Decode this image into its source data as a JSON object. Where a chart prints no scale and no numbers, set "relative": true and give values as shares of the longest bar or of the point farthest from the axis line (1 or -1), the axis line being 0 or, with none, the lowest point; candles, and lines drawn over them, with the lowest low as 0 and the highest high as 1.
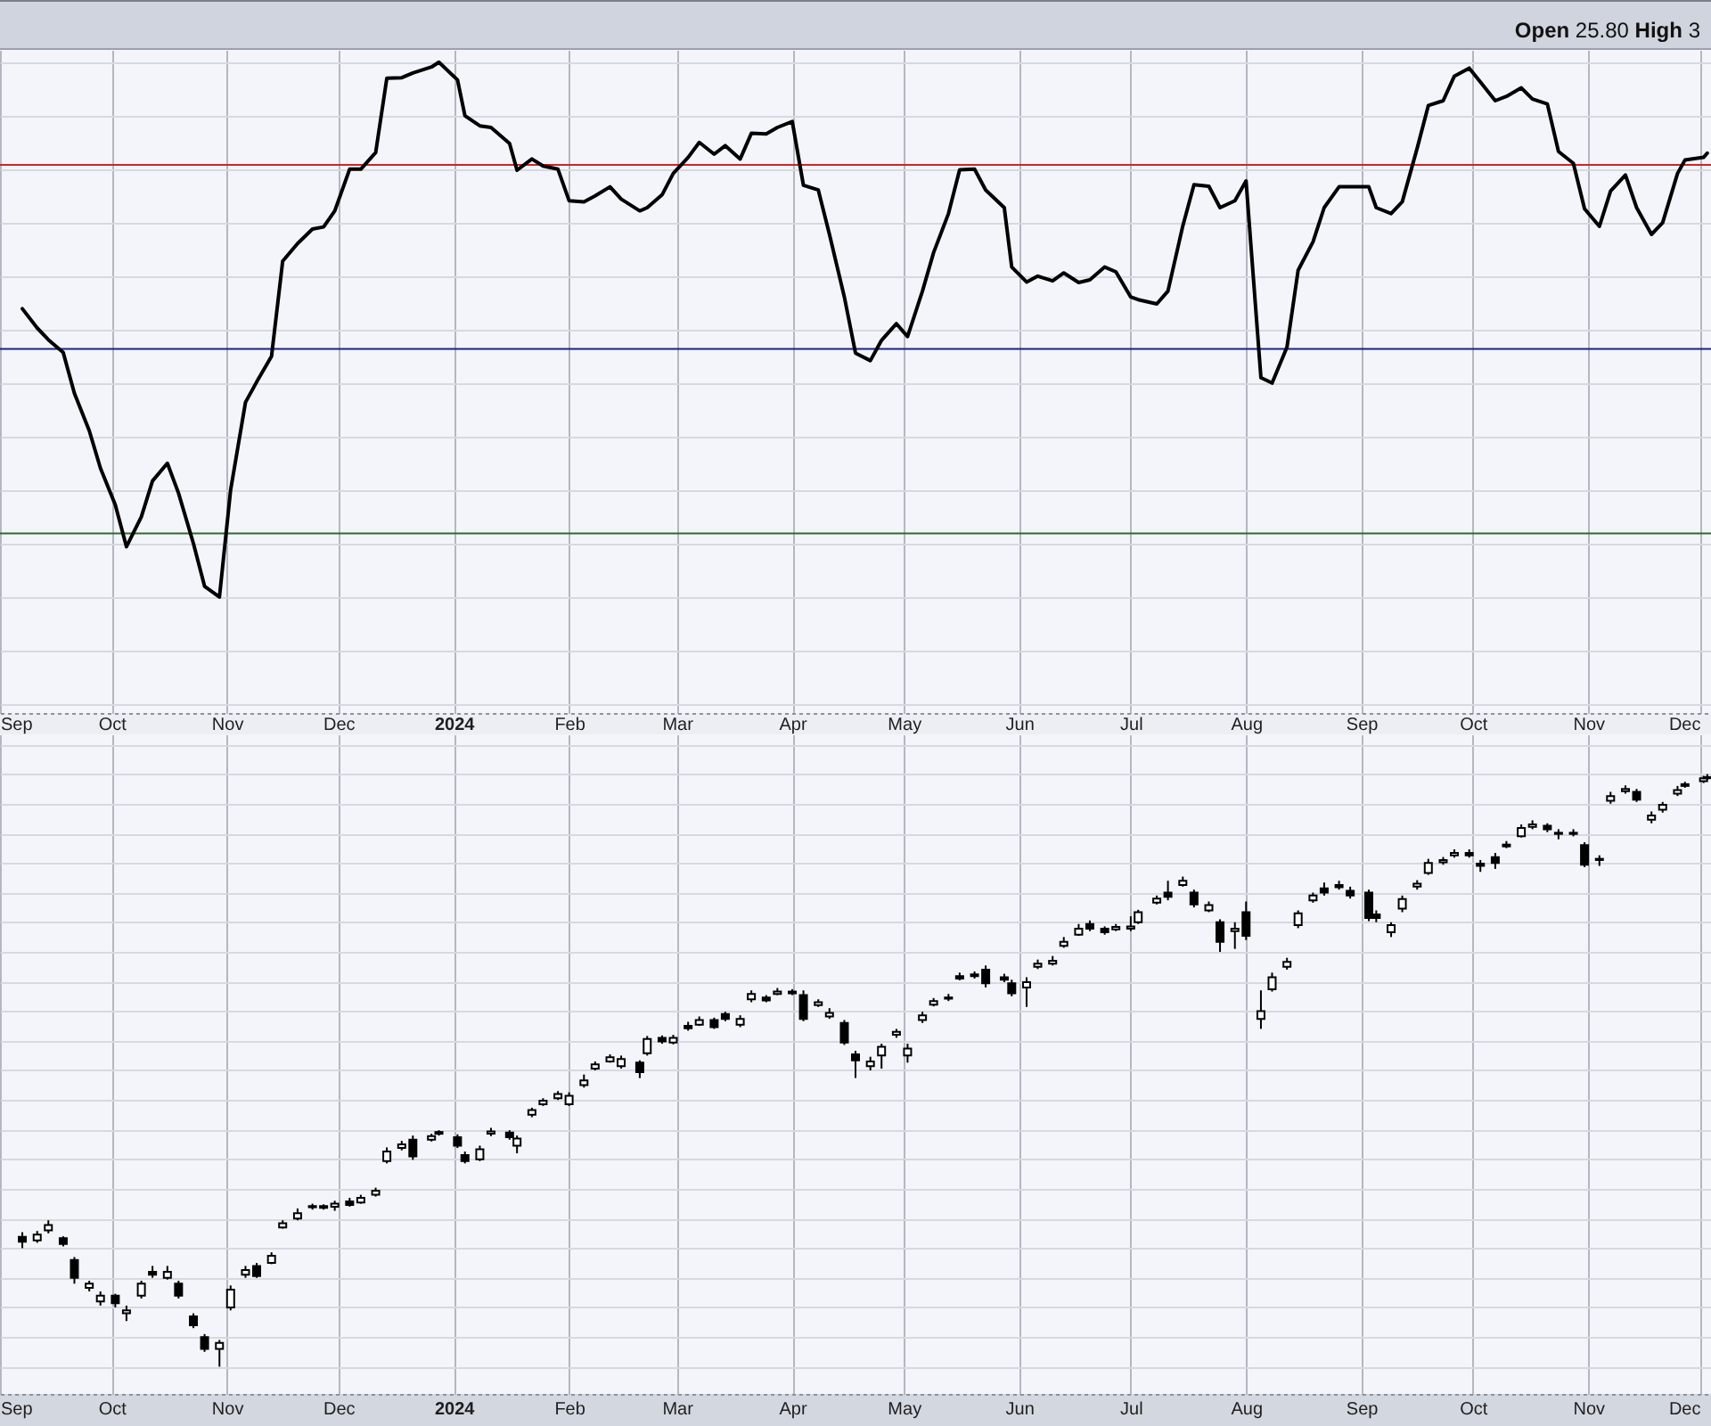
{
  "chart_data": [
    {
      "type": "line",
      "annotations": [
        "Open 25.80 High 3"
      ],
      "relative": true,
      "color": "#000000",
      "grid": true,
      "tick_labels": "x",
      "xlim": [
        "2023-09-01",
        "2024-12-04"
      ],
      "xticks": [
        {
          "value": "2023-09-01",
          "label": "Sep"
        },
        {
          "value": "2023-10-01",
          "label": "Oct"
        },
        {
          "value": "2023-11-01",
          "label": "Nov"
        },
        {
          "value": "2023-12-01",
          "label": "Dec"
        },
        {
          "value": "2024-01-01",
          "label": "2024"
        },
        {
          "value": "2024-02-01",
          "label": "Feb"
        },
        {
          "value": "2024-03-01",
          "label": "Mar"
        },
        {
          "value": "2024-04-01",
          "label": "Apr"
        },
        {
          "value": "2024-05-01",
          "label": "May"
        },
        {
          "value": "2024-06-01",
          "label": "Jun"
        },
        {
          "value": "2024-07-01",
          "label": "Jul"
        },
        {
          "value": "2024-08-01",
          "label": "Aug"
        },
        {
          "value": "2024-09-01",
          "label": "Sep"
        },
        {
          "value": "2024-10-01",
          "label": "Oct"
        },
        {
          "value": "2024-11-01",
          "label": "Nov"
        },
        {
          "value": "2024-12-01",
          "label": "Dec"
        }
      ],
      "ref_lines": [
        {
          "axis": "y",
          "value": 0.808,
          "color": "#c62828"
        },
        {
          "axis": "y",
          "value": 0.464,
          "color": "#1a237e"
        },
        {
          "axis": "y",
          "value": 0.119,
          "color": "#2e6b2e"
        }
      ],
      "x": [
        "2023-09-07",
        "2023-09-11",
        "2023-09-14",
        "2023-09-18",
        "2023-09-21",
        "2023-09-25",
        "2023-09-28",
        "2023-10-02",
        "2023-10-05",
        "2023-10-09",
        "2023-10-12",
        "2023-10-16",
        "2023-10-19",
        "2023-10-23",
        "2023-10-26",
        "2023-10-30",
        "2023-11-02",
        "2023-11-06",
        "2023-11-09",
        "2023-11-13",
        "2023-11-16",
        "2023-11-20",
        "2023-11-24",
        "2023-11-27",
        "2023-11-30",
        "2023-12-04",
        "2023-12-07",
        "2023-12-11",
        "2023-12-14",
        "2023-12-18",
        "2023-12-21",
        "2023-12-26",
        "2023-12-28",
        "2024-01-02",
        "2024-01-04",
        "2024-01-08",
        "2024-01-11",
        "2024-01-16",
        "2024-01-18",
        "2024-01-22",
        "2024-01-25",
        "2024-01-29",
        "2024-02-01",
        "2024-02-05",
        "2024-02-08",
        "2024-02-12",
        "2024-02-15",
        "2024-02-20",
        "2024-02-22",
        "2024-02-26",
        "2024-02-29",
        "2024-03-04",
        "2024-03-07",
        "2024-03-11",
        "2024-03-14",
        "2024-03-18",
        "2024-03-21",
        "2024-03-25",
        "2024-03-28",
        "2024-04-01",
        "2024-04-04",
        "2024-04-08",
        "2024-04-11",
        "2024-04-15",
        "2024-04-18",
        "2024-04-22",
        "2024-04-25",
        "2024-04-29",
        "2024-05-02",
        "2024-05-06",
        "2024-05-09",
        "2024-05-13",
        "2024-05-16",
        "2024-05-20",
        "2024-05-23",
        "2024-05-28",
        "2024-05-30",
        "2024-06-03",
        "2024-06-06",
        "2024-06-10",
        "2024-06-13",
        "2024-06-17",
        "2024-06-20",
        "2024-06-24",
        "2024-06-27",
        "2024-07-01",
        "2024-07-03",
        "2024-07-08",
        "2024-07-11",
        "2024-07-15",
        "2024-07-18",
        "2024-07-22",
        "2024-07-25",
        "2024-07-29",
        "2024-08-01",
        "2024-08-05",
        "2024-08-08",
        "2024-08-12",
        "2024-08-15",
        "2024-08-19",
        "2024-08-22",
        "2024-08-26",
        "2024-08-29",
        "2024-09-03",
        "2024-09-05",
        "2024-09-09",
        "2024-09-12",
        "2024-09-16",
        "2024-09-19",
        "2024-09-23",
        "2024-09-26",
        "2024-09-30",
        "2024-10-03",
        "2024-10-07",
        "2024-10-10",
        "2024-10-14",
        "2024-10-17",
        "2024-10-21",
        "2024-10-24",
        "2024-10-28",
        "2024-10-31",
        "2024-11-04",
        "2024-11-07",
        "2024-11-11",
        "2024-11-14",
        "2024-11-18",
        "2024-11-21",
        "2024-11-25",
        "2024-11-27",
        "2024-12-02",
        "2024-12-03"
      ],
      "values": [
        0.539,
        0.503,
        0.481,
        0.457,
        0.381,
        0.311,
        0.241,
        0.172,
        0.094,
        0.15,
        0.217,
        0.25,
        0.194,
        0.1,
        0.02,
        0,
        0.2,
        0.364,
        0.402,
        0.45,
        0.628,
        0.661,
        0.688,
        0.692,
        0.722,
        0.8,
        0.8,
        0.831,
        0.97,
        0.971,
        0.98,
        0.991,
        1,
        0.967,
        0.9,
        0.881,
        0.878,
        0.848,
        0.798,
        0.819,
        0.806,
        0.8,
        0.741,
        0.739,
        0.75,
        0.767,
        0.744,
        0.722,
        0.728,
        0.752,
        0.792,
        0.822,
        0.85,
        0.828,
        0.844,
        0.819,
        0.867,
        0.866,
        0.878,
        0.889,
        0.77,
        0.761,
        0.678,
        0.561,
        0.456,
        0.442,
        0.48,
        0.511,
        0.487,
        0.572,
        0.644,
        0.717,
        0.799,
        0.8,
        0.761,
        0.728,
        0.617,
        0.589,
        0.6,
        0.591,
        0.606,
        0.588,
        0.593,
        0.617,
        0.608,
        0.561,
        0.556,
        0.548,
        0.572,
        0.694,
        0.771,
        0.768,
        0.728,
        0.741,
        0.778,
        0.41,
        0.4,
        0.467,
        0.611,
        0.664,
        0.728,
        0.767,
        0.767,
        0.767,
        0.728,
        0.717,
        0.739,
        0.839,
        0.919,
        0.928,
        0.974,
        0.989,
        0.963,
        0.928,
        0.936,
        0.952,
        0.931,
        0.922,
        0.833,
        0.811,
        0.726,
        0.693,
        0.759,
        0.789,
        0.728,
        0.678,
        0.7,
        0.792,
        0.817,
        0.822,
        0.83
      ]
    },
    {
      "type": "candlestick",
      "relative": true,
      "color": "#000000",
      "grid": true,
      "tick_labels": "x",
      "xlim": [
        "2023-09-01",
        "2024-12-04"
      ],
      "xticks": [
        {
          "value": "2023-09-01",
          "label": "Sep"
        },
        {
          "value": "2023-10-01",
          "label": "Oct"
        },
        {
          "value": "2023-11-01",
          "label": "Nov"
        },
        {
          "value": "2023-12-01",
          "label": "Dec"
        },
        {
          "value": "2024-01-01",
          "label": "2024"
        },
        {
          "value": "2024-02-01",
          "label": "Feb"
        },
        {
          "value": "2024-03-01",
          "label": "Mar"
        },
        {
          "value": "2024-04-01",
          "label": "Apr"
        },
        {
          "value": "2024-05-01",
          "label": "May"
        },
        {
          "value": "2024-06-01",
          "label": "Jun"
        },
        {
          "value": "2024-07-01",
          "label": "Jul"
        },
        {
          "value": "2024-08-01",
          "label": "Aug"
        },
        {
          "value": "2024-09-01",
          "label": "Sep"
        },
        {
          "value": "2024-10-01",
          "label": "Oct"
        },
        {
          "value": "2024-11-01",
          "label": "Nov"
        },
        {
          "value": "2024-12-01",
          "label": "Dec"
        }
      ],
      "x": [
        "2023-09-07",
        "2023-09-11",
        "2023-09-14",
        "2023-09-18",
        "2023-09-21",
        "2023-09-25",
        "2023-09-28",
        "2023-10-02",
        "2023-10-05",
        "2023-10-09",
        "2023-10-12",
        "2023-10-16",
        "2023-10-19",
        "2023-10-23",
        "2023-10-26",
        "2023-10-30",
        "2023-11-02",
        "2023-11-06",
        "2023-11-09",
        "2023-11-13",
        "2023-11-16",
        "2023-11-20",
        "2023-11-24",
        "2023-11-27",
        "2023-11-30",
        "2023-12-04",
        "2023-12-07",
        "2023-12-11",
        "2023-12-14",
        "2023-12-18",
        "2023-12-21",
        "2023-12-26",
        "2023-12-28",
        "2024-01-02",
        "2024-01-04",
        "2024-01-08",
        "2024-01-11",
        "2024-01-16",
        "2024-01-18",
        "2024-01-22",
        "2024-01-25",
        "2024-01-29",
        "2024-02-01",
        "2024-02-05",
        "2024-02-08",
        "2024-02-12",
        "2024-02-15",
        "2024-02-20",
        "2024-02-22",
        "2024-02-26",
        "2024-02-29",
        "2024-03-04",
        "2024-03-07",
        "2024-03-11",
        "2024-03-14",
        "2024-03-18",
        "2024-03-21",
        "2024-03-25",
        "2024-03-28",
        "2024-04-01",
        "2024-04-04",
        "2024-04-08",
        "2024-04-11",
        "2024-04-15",
        "2024-04-18",
        "2024-04-22",
        "2024-04-25",
        "2024-04-29",
        "2024-05-02",
        "2024-05-06",
        "2024-05-09",
        "2024-05-13",
        "2024-05-16",
        "2024-05-20",
        "2024-05-23",
        "2024-05-28",
        "2024-05-30",
        "2024-06-03",
        "2024-06-06",
        "2024-06-10",
        "2024-06-13",
        "2024-06-17",
        "2024-06-20",
        "2024-06-24",
        "2024-06-27",
        "2024-07-01",
        "2024-07-03",
        "2024-07-08",
        "2024-07-11",
        "2024-07-15",
        "2024-07-18",
        "2024-07-22",
        "2024-07-25",
        "2024-07-29",
        "2024-08-01",
        "2024-08-05",
        "2024-08-08",
        "2024-08-12",
        "2024-08-15",
        "2024-08-19",
        "2024-08-22",
        "2024-08-26",
        "2024-08-29",
        "2024-09-03",
        "2024-09-05",
        "2024-09-09",
        "2024-09-12",
        "2024-09-16",
        "2024-09-19",
        "2024-09-23",
        "2024-09-26",
        "2024-09-30",
        "2024-10-03",
        "2024-10-07",
        "2024-10-10",
        "2024-10-14",
        "2024-10-17",
        "2024-10-21",
        "2024-10-24",
        "2024-10-28",
        "2024-10-31",
        "2024-11-04",
        "2024-11-07",
        "2024-11-11",
        "2024-11-14",
        "2024-11-18",
        "2024-11-21",
        "2024-11-25",
        "2024-11-27",
        "2024-12-02",
        "2024-12-03"
      ],
      "ohlc": [
        [
          0.219,
          0.227,
          0.2,
          0.211
        ],
        [
          0.213,
          0.229,
          0.209,
          0.223
        ],
        [
          0.23,
          0.247,
          0.225,
          0.239
        ],
        [
          0.217,
          0.22,
          0.203,
          0.207
        ],
        [
          0.18,
          0.185,
          0.14,
          0.15
        ],
        [
          0.133,
          0.145,
          0.127,
          0.14
        ],
        [
          0.11,
          0.127,
          0.103,
          0.12
        ],
        [
          0.12,
          0.123,
          0.1,
          0.107
        ],
        [
          0.09,
          0.103,
          0.077,
          0.095
        ],
        [
          0.12,
          0.145,
          0.115,
          0.14
        ],
        [
          0.16,
          0.17,
          0.15,
          0.155
        ],
        [
          0.15,
          0.17,
          0.147,
          0.16
        ],
        [
          0.14,
          0.145,
          0.115,
          0.12
        ],
        [
          0.085,
          0.09,
          0.065,
          0.07
        ],
        [
          0.05,
          0.055,
          0.025,
          0.03
        ],
        [
          0.03,
          0.045,
          0,
          0.04
        ],
        [
          0.1,
          0.137,
          0.095,
          0.13
        ],
        [
          0.155,
          0.17,
          0.15,
          0.163
        ],
        [
          0.17,
          0.175,
          0.15,
          0.153
        ],
        [
          0.175,
          0.193,
          0.173,
          0.187
        ],
        [
          0.235,
          0.247,
          0.233,
          0.242
        ],
        [
          0.25,
          0.267,
          0.247,
          0.259
        ],
        [
          0.269,
          0.275,
          0.265,
          0.271
        ],
        [
          0.271,
          0.274,
          0.265,
          0.268
        ],
        [
          0.27,
          0.28,
          0.263,
          0.275
        ],
        [
          0.279,
          0.285,
          0.27,
          0.273
        ],
        [
          0.277,
          0.29,
          0.275,
          0.285
        ],
        [
          0.29,
          0.302,
          0.287,
          0.297
        ],
        [
          0.347,
          0.37,
          0.343,
          0.363
        ],
        [
          0.369,
          0.381,
          0.365,
          0.375
        ],
        [
          0.383,
          0.39,
          0.349,
          0.355
        ],
        [
          0.383,
          0.393,
          0.38,
          0.389
        ],
        [
          0.393,
          0.399,
          0.39,
          0.396
        ],
        [
          0.387,
          0.392,
          0.369,
          0.373
        ],
        [
          0.357,
          0.363,
          0.343,
          0.347
        ],
        [
          0.35,
          0.373,
          0.347,
          0.367
        ],
        [
          0.393,
          0.403,
          0.389,
          0.397
        ],
        [
          0.395,
          0.399,
          0.383,
          0.387
        ],
        [
          0.373,
          0.39,
          0.36,
          0.385
        ],
        [
          0.425,
          0.437,
          0.421,
          0.433
        ],
        [
          0.443,
          0.453,
          0.44,
          0.449
        ],
        [
          0.453,
          0.465,
          0.45,
          0.46
        ],
        [
          0.443,
          0.463,
          0.44,
          0.457
        ],
        [
          0.475,
          0.493,
          0.471,
          0.483
        ],
        [
          0.503,
          0.515,
          0.5,
          0.51
        ],
        [
          0.515,
          0.527,
          0.513,
          0.522
        ],
        [
          0.507,
          0.525,
          0.503,
          0.519
        ],
        [
          0.513,
          0.517,
          0.487,
          0.497
        ],
        [
          0.529,
          0.558,
          0.525,
          0.553
        ],
        [
          0.555,
          0.559,
          0.545,
          0.549
        ],
        [
          0.547,
          0.56,
          0.544,
          0.555
        ],
        [
          0.575,
          0.582,
          0.567,
          0.571
        ],
        [
          0.577,
          0.591,
          0.575,
          0.585
        ],
        [
          0.585,
          0.589,
          0.57,
          0.573
        ],
        [
          0.595,
          0.599,
          0.583,
          0.587
        ],
        [
          0.577,
          0.593,
          0.573,
          0.587
        ],
        [
          0.62,
          0.635,
          0.615,
          0.629
        ],
        [
          0.623,
          0.627,
          0.615,
          0.618
        ],
        [
          0.629,
          0.639,
          0.627,
          0.633
        ],
        [
          0.633,
          0.637,
          0.627,
          0.63
        ],
        [
          0.627,
          0.635,
          0.583,
          0.587
        ],
        [
          0.61,
          0.62,
          0.607,
          0.615
        ],
        [
          0.591,
          0.605,
          0.587,
          0.597
        ],
        [
          0.58,
          0.585,
          0.543,
          0.547
        ],
        [
          0.527,
          0.533,
          0.487,
          0.517
        ],
        [
          0.507,
          0.523,
          0.5,
          0.515
        ],
        [
          0.525,
          0.545,
          0.503,
          0.54
        ],
        [
          0.56,
          0.57,
          0.555,
          0.565
        ],
        [
          0.525,
          0.545,
          0.513,
          0.537
        ],
        [
          0.585,
          0.599,
          0.58,
          0.593
        ],
        [
          0.611,
          0.622,
          0.608,
          0.617
        ],
        [
          0.623,
          0.629,
          0.617,
          0.621
        ],
        [
          0.659,
          0.665,
          0.652,
          0.655
        ],
        [
          0.659,
          0.667,
          0.655,
          0.662
        ],
        [
          0.67,
          0.677,
          0.64,
          0.647
        ],
        [
          0.657,
          0.663,
          0.649,
          0.653
        ],
        [
          0.647,
          0.653,
          0.625,
          0.63
        ],
        [
          0.64,
          0.657,
          0.607,
          0.649
        ],
        [
          0.675,
          0.687,
          0.671,
          0.68
        ],
        [
          0.68,
          0.693,
          0.677,
          0.685
        ],
        [
          0.71,
          0.725,
          0.707,
          0.717
        ],
        [
          0.729,
          0.747,
          0.727,
          0.739
        ],
        [
          0.747,
          0.753,
          0.735,
          0.739
        ],
        [
          0.739,
          0.743,
          0.729,
          0.733
        ],
        [
          0.738,
          0.747,
          0.735,
          0.742
        ],
        [
          0.739,
          0.76,
          0.735,
          0.743
        ],
        [
          0.75,
          0.771,
          0.747,
          0.767
        ],
        [
          0.783,
          0.795,
          0.78,
          0.79
        ],
        [
          0.8,
          0.82,
          0.787,
          0.793
        ],
        [
          0.813,
          0.827,
          0.81,
          0.82
        ],
        [
          0.8,
          0.805,
          0.775,
          0.78
        ],
        [
          0.77,
          0.785,
          0.767,
          0.779
        ],
        [
          0.75,
          0.755,
          0.7,
          0.717
        ],
        [
          0.735,
          0.75,
          0.705,
          0.739
        ],
        [
          0.767,
          0.785,
          0.72,
          0.727
        ],
        [
          0.587,
          0.635,
          0.57,
          0.6
        ],
        [
          0.637,
          0.665,
          0.633,
          0.657
        ],
        [
          0.675,
          0.69,
          0.67,
          0.683
        ],
        [
          0.745,
          0.77,
          0.74,
          0.765
        ],
        [
          0.787,
          0.8,
          0.783,
          0.795
        ],
        [
          0.807,
          0.817,
          0.795,
          0.8
        ],
        [
          0.813,
          0.82,
          0.805,
          0.809
        ],
        [
          0.803,
          0.81,
          0.79,
          0.795
        ],
        [
          0.8,
          0.805,
          0.752,
          0.757
        ],
        [
          0.763,
          0.77,
          0.75,
          0.757
        ],
        [
          0.733,
          0.75,
          0.725,
          0.745
        ],
        [
          0.773,
          0.795,
          0.767,
          0.789
        ],
        [
          0.81,
          0.821,
          0.805,
          0.815
        ],
        [
          0.833,
          0.857,
          0.83,
          0.85
        ],
        [
          0.851,
          0.86,
          0.847,
          0.855
        ],
        [
          0.863,
          0.873,
          0.859,
          0.867
        ],
        [
          0.867,
          0.873,
          0.859,
          0.863
        ],
        [
          0.849,
          0.855,
          0.835,
          0.845
        ],
        [
          0.86,
          0.867,
          0.84,
          0.85
        ],
        [
          0.878,
          0.887,
          0.875,
          0.881
        ],
        [
          0.895,
          0.915,
          0.893,
          0.909
        ],
        [
          0.911,
          0.922,
          0.907,
          0.915
        ],
        [
          0.913,
          0.917,
          0.902,
          0.907
        ],
        [
          0.899,
          0.907,
          0.89,
          0.901
        ],
        [
          0.901,
          0.907,
          0.895,
          0.899
        ],
        [
          0.88,
          0.885,
          0.843,
          0.847
        ],
        [
          0.855,
          0.863,
          0.845,
          0.857
        ],
        [
          0.955,
          0.97,
          0.95,
          0.963
        ],
        [
          0.971,
          0.981,
          0.967,
          0.975
        ],
        [
          0.97,
          0.975,
          0.953,
          0.957
        ],
        [
          0.923,
          0.937,
          0.917,
          0.93
        ],
        [
          0.94,
          0.953,
          0.935,
          0.948
        ],
        [
          0.967,
          0.98,
          0.963,
          0.973
        ],
        [
          0.983,
          0.987,
          0.977,
          0.98
        ],
        [
          0.988,
          0.997,
          0.985,
          0.993
        ],
        [
          0.993,
          1,
          0.99,
          0.995
        ]
      ]
    }
  ]
}
